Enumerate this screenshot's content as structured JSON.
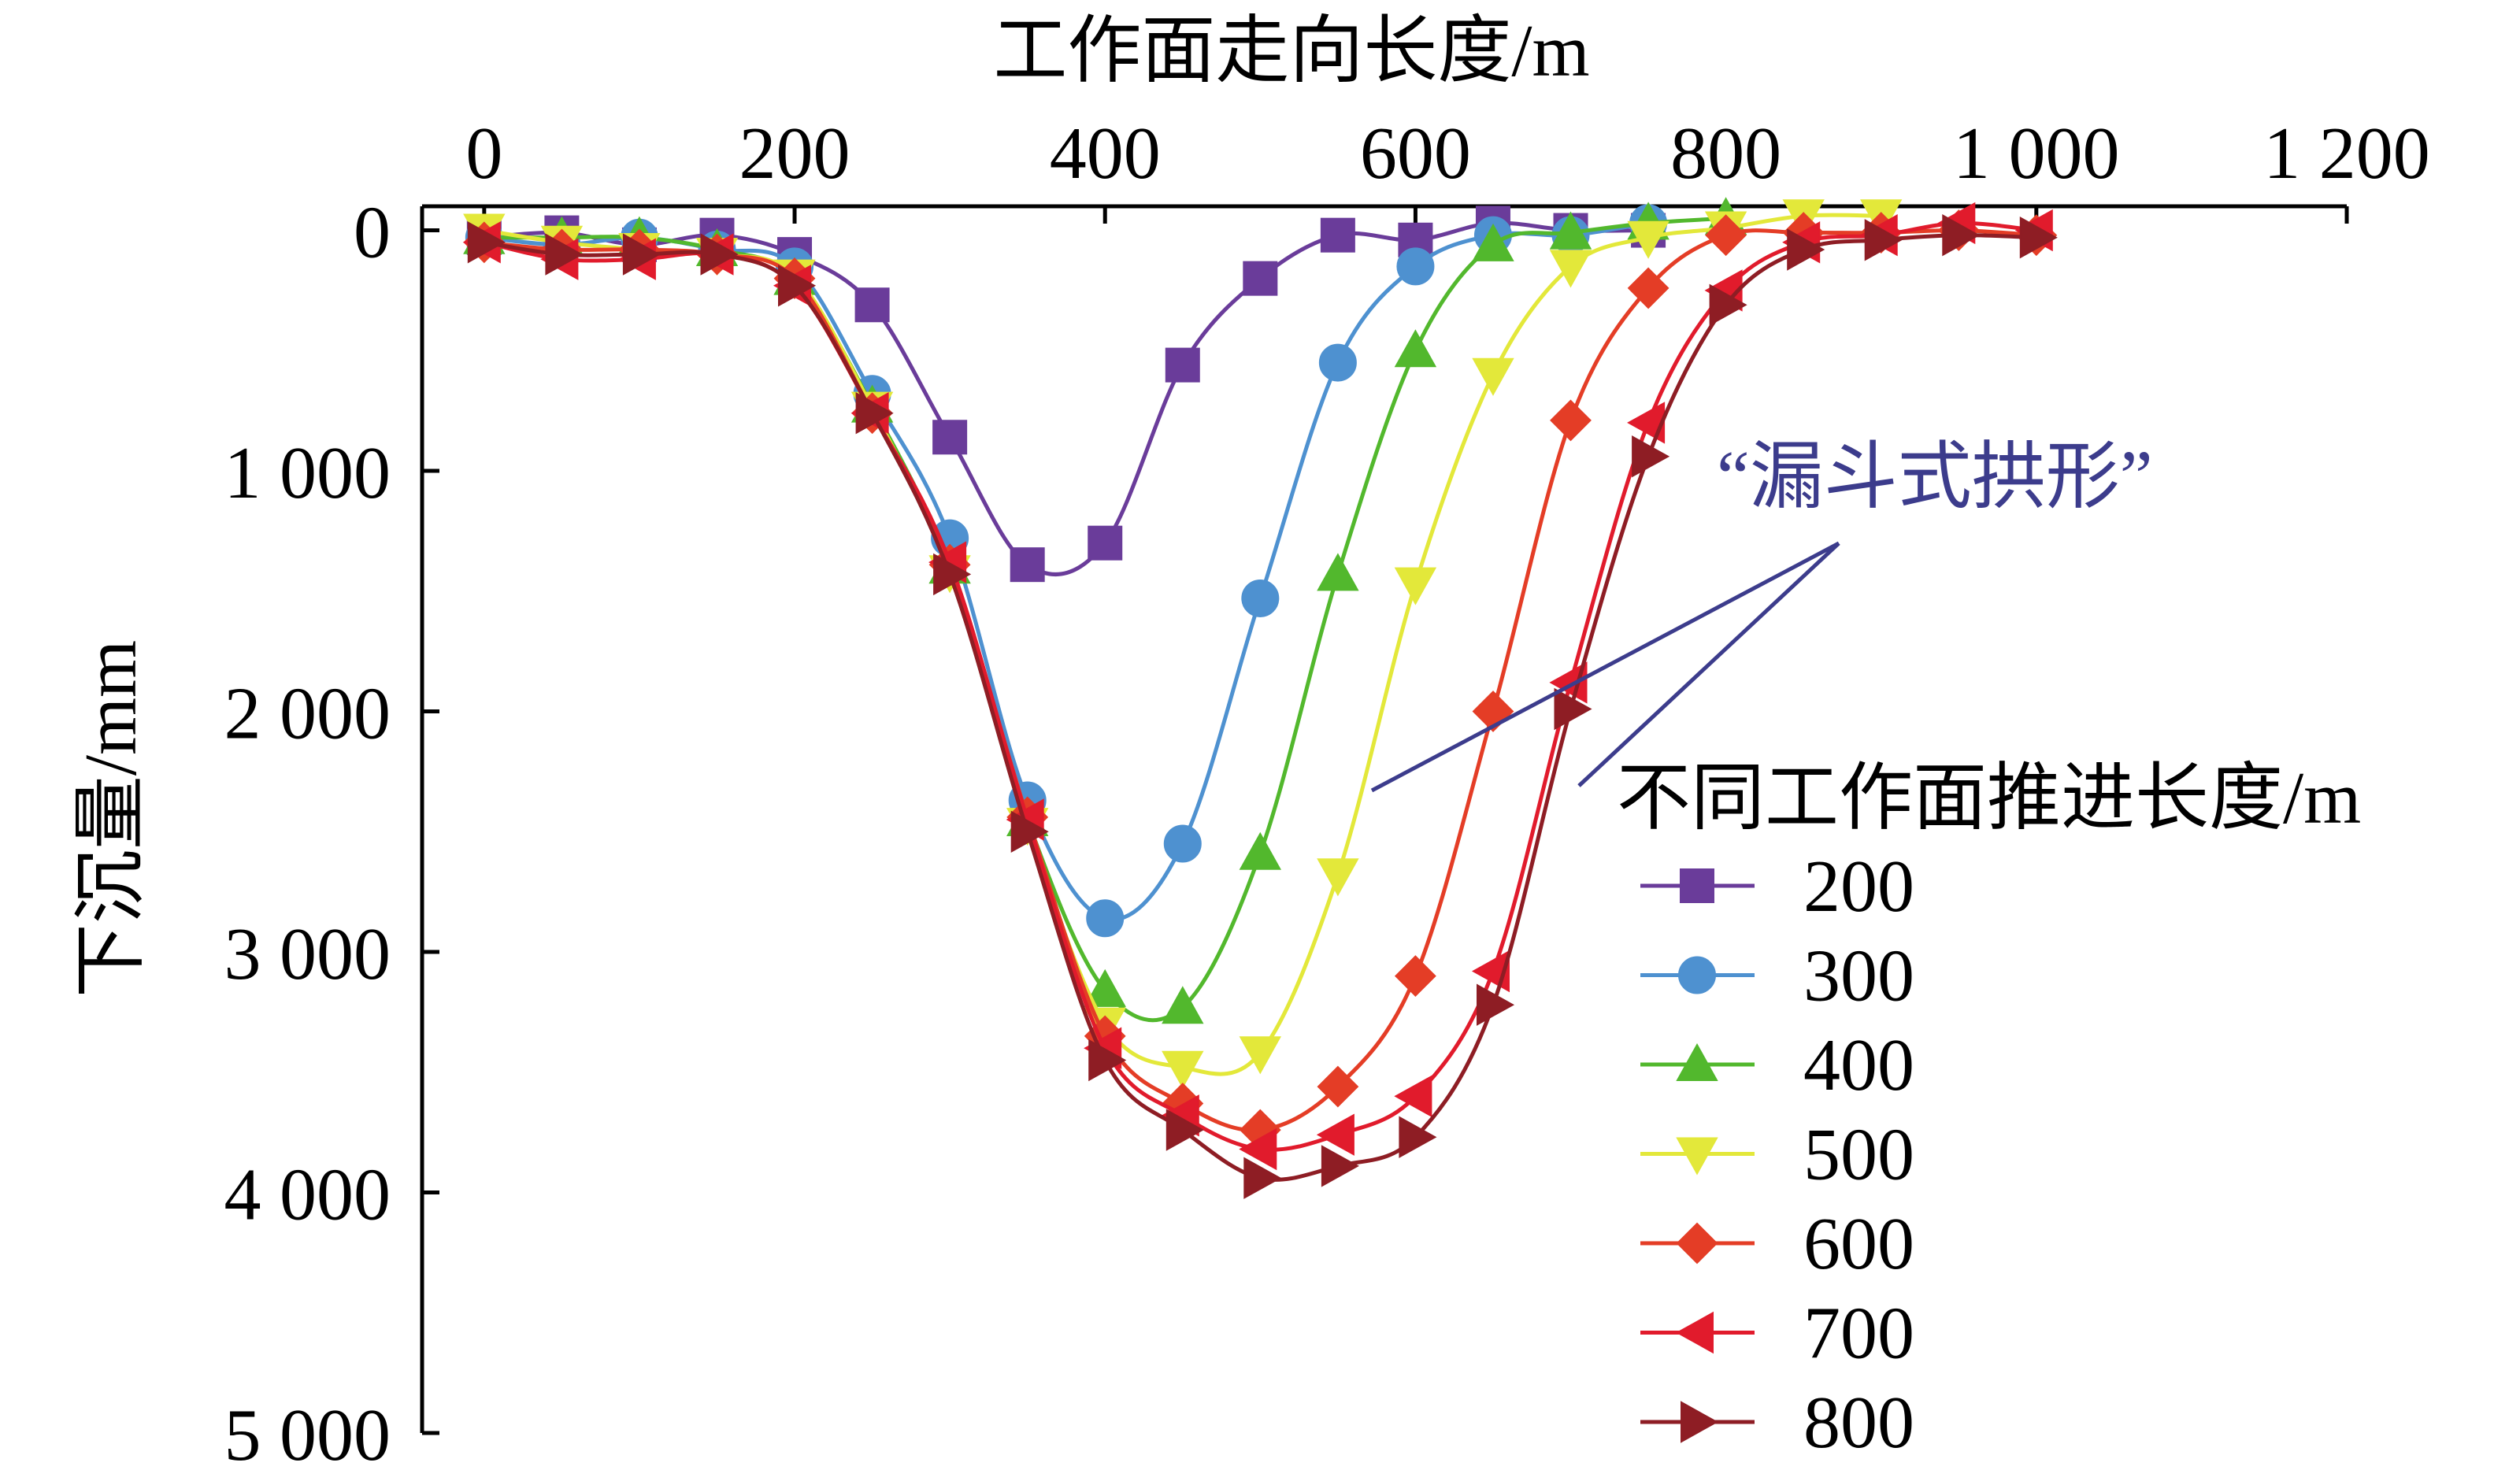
{
  "chart_data": {
    "type": "line",
    "xlabel": "工作面走向长度/m",
    "ylabel": "下沉量/mm",
    "x_axis_position": "top",
    "y_axis_inverted": true,
    "xlim": [
      -40,
      1200
    ],
    "ylim": [
      5000,
      -100
    ],
    "xticks": [
      0,
      200,
      400,
      600,
      800,
      1000,
      1200
    ],
    "xtick_labels": [
      "0",
      "200",
      "400",
      "600",
      "800",
      "1 000",
      "1 200"
    ],
    "yticks": [
      0,
      1000,
      2000,
      3000,
      4000,
      5000
    ],
    "ytick_labels": [
      "0",
      "1 000",
      "2 000",
      "3 000",
      "4 000",
      "5 000"
    ],
    "grid": false,
    "legend_title": "不同工作面推进长度/m",
    "legend_position": "bottom-right",
    "annotation": {
      "text": "“漏斗式拱形”",
      "color": "#3C3C8C"
    },
    "series": [
      {
        "name": "200",
        "color": "#6A3C9A",
        "marker": "square",
        "points": [
          [
            0,
            30
          ],
          [
            50,
            10
          ],
          [
            100,
            60
          ],
          [
            150,
            20
          ],
          [
            200,
            100
          ],
          [
            250,
            310
          ],
          [
            300,
            860
          ],
          [
            350,
            1390
          ],
          [
            400,
            1300
          ],
          [
            450,
            560
          ],
          [
            500,
            200
          ],
          [
            550,
            20
          ],
          [
            600,
            40
          ],
          [
            650,
            -30
          ],
          [
            700,
            0
          ],
          [
            750,
            0
          ]
        ]
      },
      {
        "name": "300",
        "color": "#4E91D0",
        "marker": "circle",
        "points": [
          [
            0,
            30
          ],
          [
            50,
            60
          ],
          [
            100,
            30
          ],
          [
            150,
            80
          ],
          [
            200,
            150
          ],
          [
            250,
            680
          ],
          [
            300,
            1280
          ],
          [
            350,
            2370
          ],
          [
            400,
            2860
          ],
          [
            450,
            2550
          ],
          [
            500,
            1530
          ],
          [
            550,
            550
          ],
          [
            600,
            150
          ],
          [
            650,
            20
          ],
          [
            700,
            20
          ],
          [
            750,
            -30
          ]
        ]
      },
      {
        "name": "400",
        "color": "#52B82D",
        "marker": "triangle-up",
        "points": [
          [
            0,
            30
          ],
          [
            50,
            30
          ],
          [
            100,
            30
          ],
          [
            150,
            80
          ],
          [
            200,
            200
          ],
          [
            250,
            730
          ],
          [
            300,
            1400
          ],
          [
            350,
            2450
          ],
          [
            400,
            3160
          ],
          [
            450,
            3230
          ],
          [
            500,
            2590
          ],
          [
            550,
            1430
          ],
          [
            600,
            500
          ],
          [
            650,
            60
          ],
          [
            700,
            10
          ],
          [
            750,
            -30
          ],
          [
            800,
            -50
          ]
        ]
      },
      {
        "name": "500",
        "color": "#E3E83A",
        "marker": "triangle-down",
        "points": [
          [
            0,
            0
          ],
          [
            50,
            50
          ],
          [
            100,
            80
          ],
          [
            150,
            100
          ],
          [
            200,
            190
          ],
          [
            250,
            740
          ],
          [
            300,
            1420
          ],
          [
            350,
            2470
          ],
          [
            400,
            3300
          ],
          [
            450,
            3480
          ],
          [
            500,
            3420
          ],
          [
            550,
            2680
          ],
          [
            600,
            1470
          ],
          [
            650,
            600
          ],
          [
            700,
            150
          ],
          [
            750,
            30
          ],
          [
            800,
            -10
          ],
          [
            850,
            -60
          ],
          [
            900,
            -60
          ]
        ]
      },
      {
        "name": "600",
        "color": "#E43D26",
        "marker": "diamond",
        "points": [
          [
            0,
            50
          ],
          [
            50,
            80
          ],
          [
            100,
            80
          ],
          [
            150,
            100
          ],
          [
            200,
            200
          ],
          [
            250,
            760
          ],
          [
            300,
            1390
          ],
          [
            350,
            2440
          ],
          [
            400,
            3350
          ],
          [
            450,
            3630
          ],
          [
            500,
            3740
          ],
          [
            550,
            3560
          ],
          [
            600,
            3100
          ],
          [
            650,
            2000
          ],
          [
            700,
            790
          ],
          [
            750,
            240
          ],
          [
            800,
            20
          ],
          [
            850,
            10
          ],
          [
            900,
            10
          ],
          [
            950,
            0
          ],
          [
            1000,
            20
          ]
        ]
      },
      {
        "name": "700",
        "color": "#E11B2C",
        "marker": "triangle-left",
        "points": [
          [
            0,
            50
          ],
          [
            50,
            120
          ],
          [
            100,
            120
          ],
          [
            150,
            100
          ],
          [
            200,
            230
          ],
          [
            250,
            760
          ],
          [
            300,
            1380
          ],
          [
            350,
            2450
          ],
          [
            400,
            3400
          ],
          [
            450,
            3680
          ],
          [
            500,
            3820
          ],
          [
            550,
            3760
          ],
          [
            600,
            3600
          ],
          [
            650,
            3080
          ],
          [
            700,
            1880
          ],
          [
            750,
            800
          ],
          [
            800,
            250
          ],
          [
            850,
            50
          ],
          [
            900,
            20
          ],
          [
            950,
            -30
          ],
          [
            1000,
            0
          ]
        ]
      },
      {
        "name": "800",
        "color": "#8E1D24",
        "marker": "triangle-right",
        "points": [
          [
            0,
            50
          ],
          [
            50,
            100
          ],
          [
            100,
            100
          ],
          [
            150,
            100
          ],
          [
            200,
            230
          ],
          [
            250,
            760
          ],
          [
            300,
            1430
          ],
          [
            350,
            2500
          ],
          [
            400,
            3450
          ],
          [
            450,
            3740
          ],
          [
            500,
            3940
          ],
          [
            550,
            3890
          ],
          [
            600,
            3770
          ],
          [
            650,
            3220
          ],
          [
            700,
            1990
          ],
          [
            750,
            940
          ],
          [
            800,
            310
          ],
          [
            850,
            80
          ],
          [
            900,
            40
          ],
          [
            950,
            20
          ],
          [
            1000,
            30
          ]
        ]
      }
    ]
  }
}
